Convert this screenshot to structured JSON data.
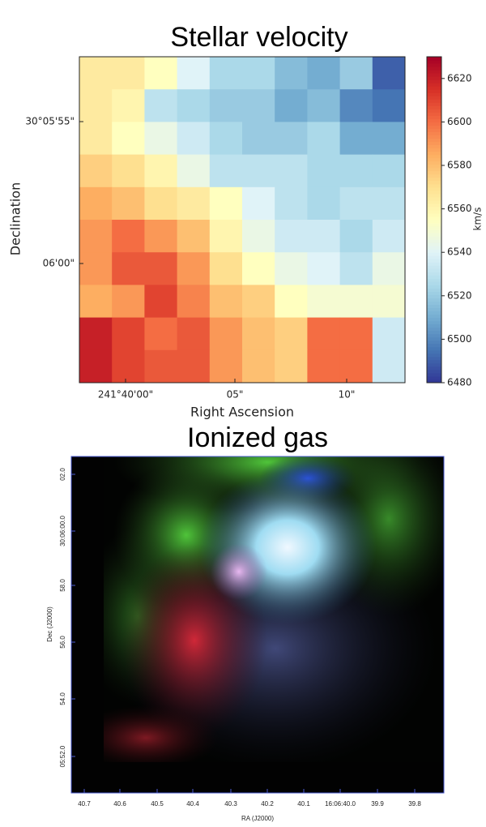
{
  "velocity_map": {
    "type": "heatmap",
    "title": "Stellar velocity",
    "x_label": "Right Ascension",
    "y_label": "Declination",
    "xtick_labels": [
      "241°40'00\"",
      "05\"",
      "10\""
    ],
    "ytick_labels": [
      "30°05'55\"",
      "06'00\""
    ],
    "colorbar_label": "km/s",
    "colormap": "RdYlBu_r",
    "clim": [
      6480,
      6630
    ],
    "colorbar_ticks": [
      6480,
      6500,
      6520,
      6540,
      6560,
      6580,
      6600,
      6620
    ],
    "values": [
      [
        6565,
        6565,
        6555,
        6540,
        6525,
        6525,
        6515,
        6510,
        6520,
        6490
      ],
      [
        6565,
        6560,
        6530,
        6525,
        6520,
        6520,
        6510,
        6515,
        6500,
        6495
      ],
      [
        6565,
        6555,
        6545,
        6535,
        6525,
        6520,
        6520,
        6525,
        6510,
        6510
      ],
      [
        6575,
        6570,
        6560,
        6545,
        6530,
        6530,
        6530,
        6525,
        6525,
        6525
      ],
      [
        6585,
        6580,
        6570,
        6565,
        6555,
        6540,
        6530,
        6525,
        6530,
        6530
      ],
      [
        6590,
        6600,
        6590,
        6580,
        6560,
        6545,
        6535,
        6535,
        6525,
        6535
      ],
      [
        6590,
        6605,
        6605,
        6590,
        6570,
        6555,
        6545,
        6540,
        6530,
        6545
      ],
      [
        6585,
        6590,
        6610,
        6595,
        6580,
        6575,
        6555,
        6550,
        6550,
        6550
      ],
      [
        6620,
        6610,
        6600,
        6605,
        6590,
        6580,
        6575,
        6600,
        6600,
        6535
      ],
      [
        6620,
        6610,
        6605,
        6605,
        6590,
        6580,
        6575,
        6600,
        6600,
        6535
      ]
    ]
  },
  "gas_map": {
    "title": "Ionized gas",
    "x_label": "RA (J2000)",
    "y_label": "Dec (J2000)",
    "xtick_labels": [
      "40.7",
      "40.6",
      "40.5",
      "40.4",
      "40.3",
      "40.2",
      "40.1",
      "16:06:40.0",
      "39.9",
      "39.8"
    ],
    "ytick_labels": [
      "02.0",
      "30:06:00.0",
      "58.0",
      "56.0",
      "54.0",
      "05:52.0"
    ]
  }
}
